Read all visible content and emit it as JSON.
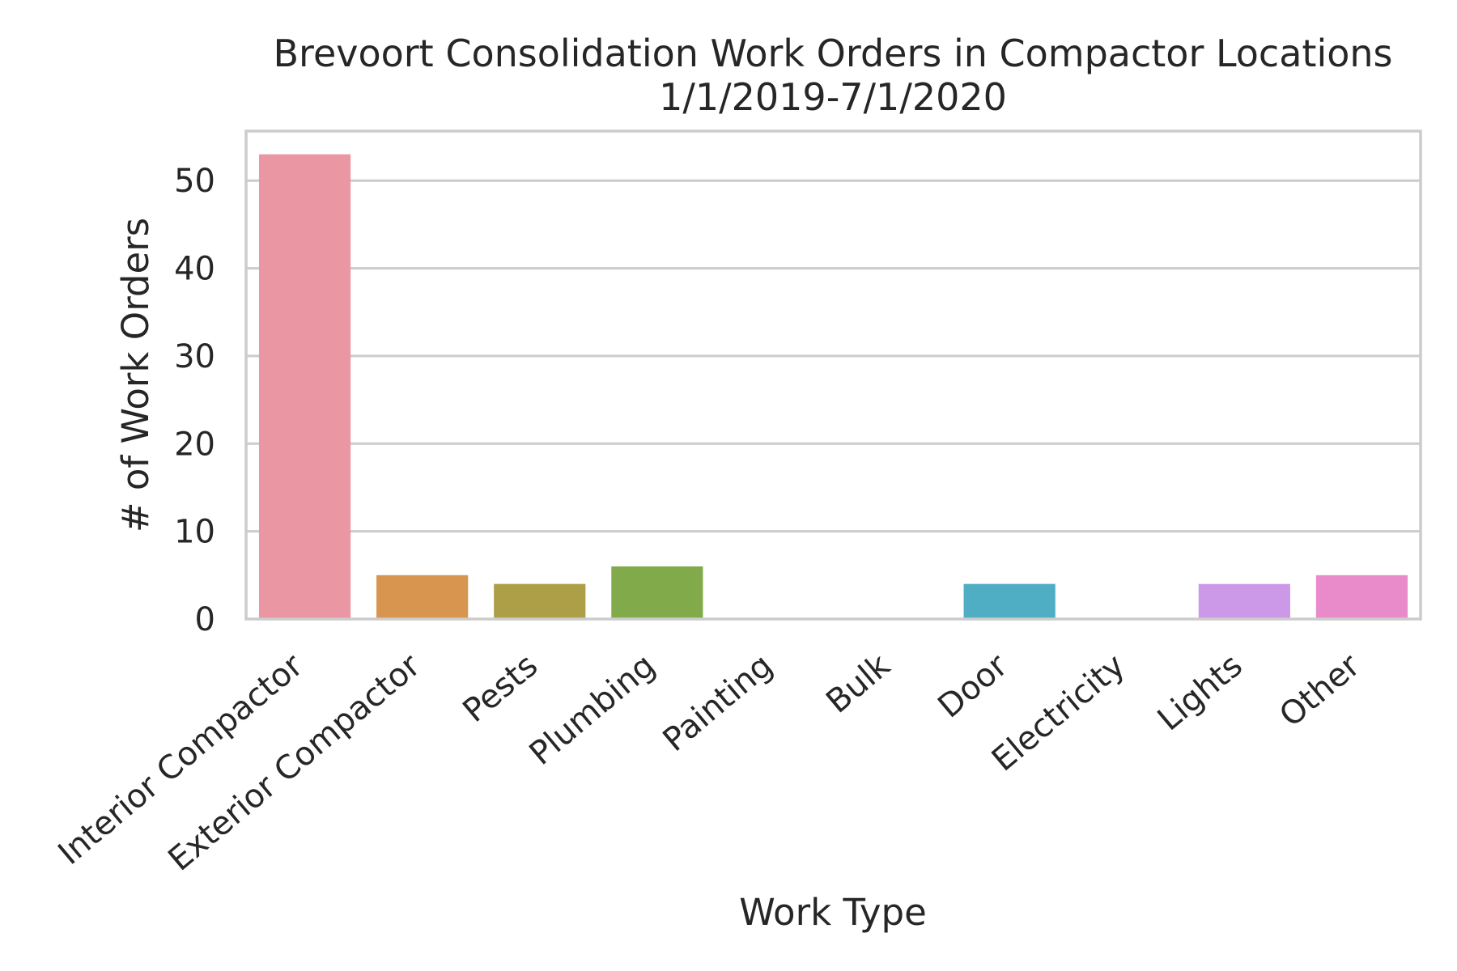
{
  "chart_data": {
    "type": "bar",
    "title": "Brevoort Consolidation Work Orders in Compactor Locations",
    "subtitle": "1/1/2019-7/1/2020",
    "xlabel": "Work Type",
    "ylabel": "# of Work Orders",
    "categories": [
      "Interior Compactor",
      "Exterior Compactor",
      "Pests",
      "Plumbing",
      "Painting",
      "Bulk",
      "Door",
      "Electricity",
      "Lights",
      "Other"
    ],
    "values": [
      53,
      5,
      4,
      6,
      0,
      0,
      4,
      0,
      4,
      5
    ],
    "colors": [
      "#ea96a3",
      "#d8954f",
      "#ad9e48",
      "#81ab4a",
      "#50b68c",
      "#55b1a0",
      "#4fadc4",
      "#8fb4e9",
      "#cc99e8",
      "#e98bcb"
    ],
    "ylim": [
      0,
      55.65
    ],
    "yticks": [
      0,
      10,
      20,
      30,
      40,
      50
    ],
    "grid": true,
    "legend": "none"
  }
}
